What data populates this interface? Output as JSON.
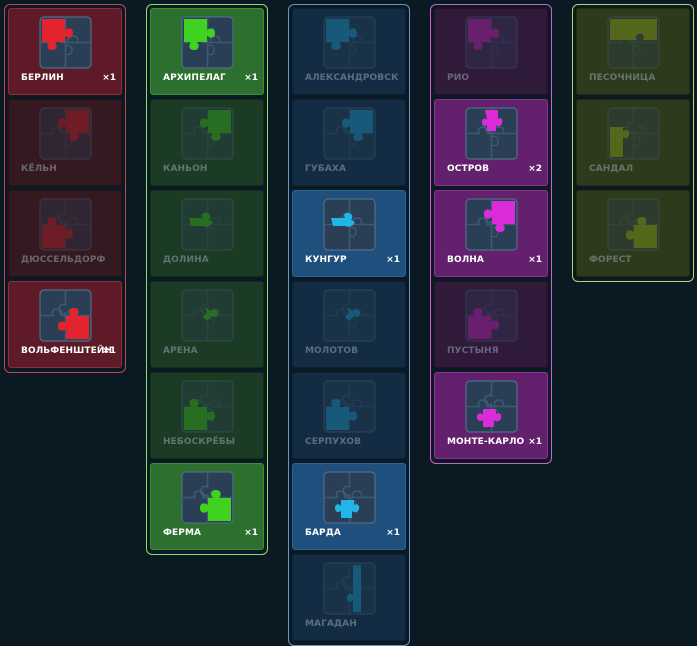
{
  "groups": [
    {
      "id": "red",
      "colors": {
        "border": "#c34551",
        "card_on": "#5e1b27",
        "card_off": "#341921",
        "card_border": "#872f3c",
        "accent": "#e3242e"
      },
      "cards": [
        {
          "label": "БЕРЛИН",
          "count": "×1",
          "active": true,
          "piece": "tl"
        },
        {
          "label": "КЁЛЬН",
          "count": "",
          "active": false,
          "piece": "tr"
        },
        {
          "label": "ДЮССЕЛЬДОРФ",
          "count": "",
          "active": false,
          "piece": "bl"
        },
        {
          "label": "ВОЛЬФЕНШТЕЙН",
          "count": "×1",
          "active": true,
          "piece": "br"
        }
      ]
    },
    {
      "id": "green",
      "colors": {
        "border": "#8ce065",
        "card_on": "#2c6f2f",
        "card_off": "#1c3b24",
        "card_border": "#3c8e3c",
        "accent": "#3fd320"
      },
      "cards": [
        {
          "label": "АРХИПЕЛАГ",
          "count": "×1",
          "active": true,
          "piece": "tl"
        },
        {
          "label": "КАНЬОН",
          "count": "",
          "active": false,
          "piece": "tr"
        },
        {
          "label": "ДОЛИНА",
          "count": "",
          "active": false,
          "piece": "ml"
        },
        {
          "label": "АРЕНА",
          "count": "",
          "active": false,
          "piece": "mr"
        },
        {
          "label": "НЕБОСКРЁБЫ",
          "count": "",
          "active": false,
          "piece": "bl"
        },
        {
          "label": "ФЕРМА",
          "count": "×1",
          "active": true,
          "piece": "br"
        }
      ]
    },
    {
      "id": "blue",
      "colors": {
        "border": "#5f95d2",
        "card_on": "#1f4f7d",
        "card_off": "#132c43",
        "card_border": "#2d6396",
        "accent": "#22b6e8"
      },
      "cards": [
        {
          "label": "АЛЕКСАНДРОВСК",
          "count": "",
          "active": false,
          "piece": "tl"
        },
        {
          "label": "ГУБАХА",
          "count": "",
          "active": false,
          "piece": "tr"
        },
        {
          "label": "КУНГУР",
          "count": "×1",
          "active": true,
          "piece": "ml"
        },
        {
          "label": "МОЛОТОВ",
          "count": "",
          "active": false,
          "piece": "mr"
        },
        {
          "label": "СЕРПУХОВ",
          "count": "",
          "active": false,
          "piece": "bl"
        },
        {
          "label": "БАРДА",
          "count": "×1",
          "active": true,
          "piece": "bc"
        },
        {
          "label": "МАГАДАН",
          "count": "",
          "active": false,
          "piece": "rr"
        }
      ]
    },
    {
      "id": "purple",
      "colors": {
        "border": "#d15fd4",
        "card_on": "#63206c",
        "card_off": "#301a3a",
        "card_border": "#8c3296",
        "accent": "#dc2bd9"
      },
      "cards": [
        {
          "label": "РИО",
          "count": "",
          "active": false,
          "piece": "tl"
        },
        {
          "label": "ОСТРОВ",
          "count": "×2",
          "active": true,
          "piece": "tc"
        },
        {
          "label": "ВОЛНА",
          "count": "×1",
          "active": true,
          "piece": "tr"
        },
        {
          "label": "ПУСТЫНЯ",
          "count": "",
          "active": false,
          "piece": "bl"
        },
        {
          "label": "МОНТЕ-КАРЛО",
          "count": "×1",
          "active": true,
          "piece": "bc"
        }
      ]
    },
    {
      "id": "olive",
      "colors": {
        "border": "#b7d65e",
        "card_on": "#4a5d1d",
        "card_off": "#2d3a1c",
        "card_border": "#5c7226",
        "accent": "#a8c21a"
      },
      "cards": [
        {
          "label": "ПЕСОЧНИЦА",
          "count": "",
          "active": false,
          "piece": "top"
        },
        {
          "label": "САНДАЛ",
          "count": "",
          "active": false,
          "piece": "left"
        },
        {
          "label": "ФОРЕСТ",
          "count": "",
          "active": false,
          "piece": "br"
        }
      ]
    }
  ]
}
